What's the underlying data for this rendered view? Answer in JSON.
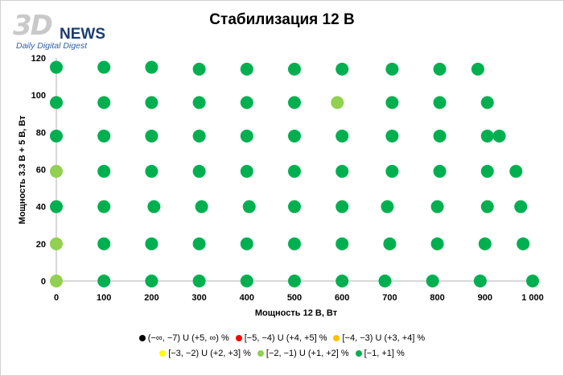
{
  "logo": {
    "mark": "3D",
    "word": "NEWS",
    "tagline": "Daily Digital Digest"
  },
  "chart_data": {
    "type": "scatter",
    "title": "Стабилизация 12 В",
    "xlabel": "Мощность  12 В, Вт",
    "ylabel": "Мощность  3.3 В + 5 В, Вт",
    "xlim": [
      0,
      1000
    ],
    "ylim": [
      0,
      120
    ],
    "x_ticks": [
      "0",
      "100",
      "200",
      "300",
      "400",
      "500",
      "600",
      "700",
      "800",
      "900",
      "1 000"
    ],
    "y_ticks": [
      "0",
      "20",
      "40",
      "60",
      "80",
      "100",
      "120"
    ],
    "legend_position": "bottom",
    "series": [
      {
        "name": "(−∞, −7) U (+5, ∞) %",
        "color": "#000000",
        "points": []
      },
      {
        "name": "[−5, −4) U (+4, +5] %",
        "color": "#ff0000",
        "points": []
      },
      {
        "name": "[−4, −3) U (+3, +4] %",
        "color": "#ffc000",
        "points": []
      },
      {
        "name": "[−3, −2) U (+2, +3] %",
        "color": "#ffff00",
        "points": []
      },
      {
        "name": "[−2, −1) U (+1, +2] %",
        "color": "#92d050",
        "points": [
          [
            0,
            0
          ],
          [
            0,
            20
          ],
          [
            0,
            59
          ],
          [
            590,
            96
          ]
        ]
      },
      {
        "name": "[−1, +1] %",
        "color": "#00b050",
        "points": [
          [
            100,
            0
          ],
          [
            200,
            0
          ],
          [
            300,
            0
          ],
          [
            400,
            0
          ],
          [
            500,
            0
          ],
          [
            600,
            0
          ],
          [
            690,
            0
          ],
          [
            790,
            0
          ],
          [
            890,
            0
          ],
          [
            1000,
            0
          ],
          [
            100,
            20
          ],
          [
            200,
            20
          ],
          [
            300,
            20
          ],
          [
            400,
            20
          ],
          [
            500,
            20
          ],
          [
            600,
            20
          ],
          [
            700,
            20
          ],
          [
            800,
            20
          ],
          [
            900,
            20
          ],
          [
            980,
            20
          ],
          [
            0,
            40
          ],
          [
            100,
            40
          ],
          [
            205,
            40
          ],
          [
            305,
            40
          ],
          [
            405,
            40
          ],
          [
            500,
            40
          ],
          [
            600,
            40
          ],
          [
            695,
            40
          ],
          [
            800,
            40
          ],
          [
            905,
            40
          ],
          [
            975,
            40
          ],
          [
            100,
            59
          ],
          [
            200,
            59
          ],
          [
            300,
            59
          ],
          [
            400,
            59
          ],
          [
            500,
            59
          ],
          [
            600,
            59
          ],
          [
            705,
            59
          ],
          [
            805,
            59
          ],
          [
            905,
            59
          ],
          [
            965,
            59
          ],
          [
            0,
            78
          ],
          [
            100,
            78
          ],
          [
            200,
            78
          ],
          [
            300,
            78
          ],
          [
            400,
            78
          ],
          [
            500,
            78
          ],
          [
            600,
            78
          ],
          [
            705,
            78
          ],
          [
            805,
            78
          ],
          [
            905,
            78
          ],
          [
            930,
            78
          ],
          [
            0,
            96
          ],
          [
            100,
            96
          ],
          [
            200,
            96
          ],
          [
            300,
            96
          ],
          [
            400,
            96
          ],
          [
            500,
            96
          ],
          [
            705,
            96
          ],
          [
            805,
            96
          ],
          [
            905,
            96
          ],
          [
            0,
            115
          ],
          [
            100,
            115
          ],
          [
            200,
            115
          ],
          [
            300,
            114
          ],
          [
            400,
            114
          ],
          [
            500,
            114
          ],
          [
            600,
            114
          ],
          [
            705,
            114
          ],
          [
            805,
            114
          ],
          [
            885,
            114
          ]
        ]
      }
    ]
  }
}
